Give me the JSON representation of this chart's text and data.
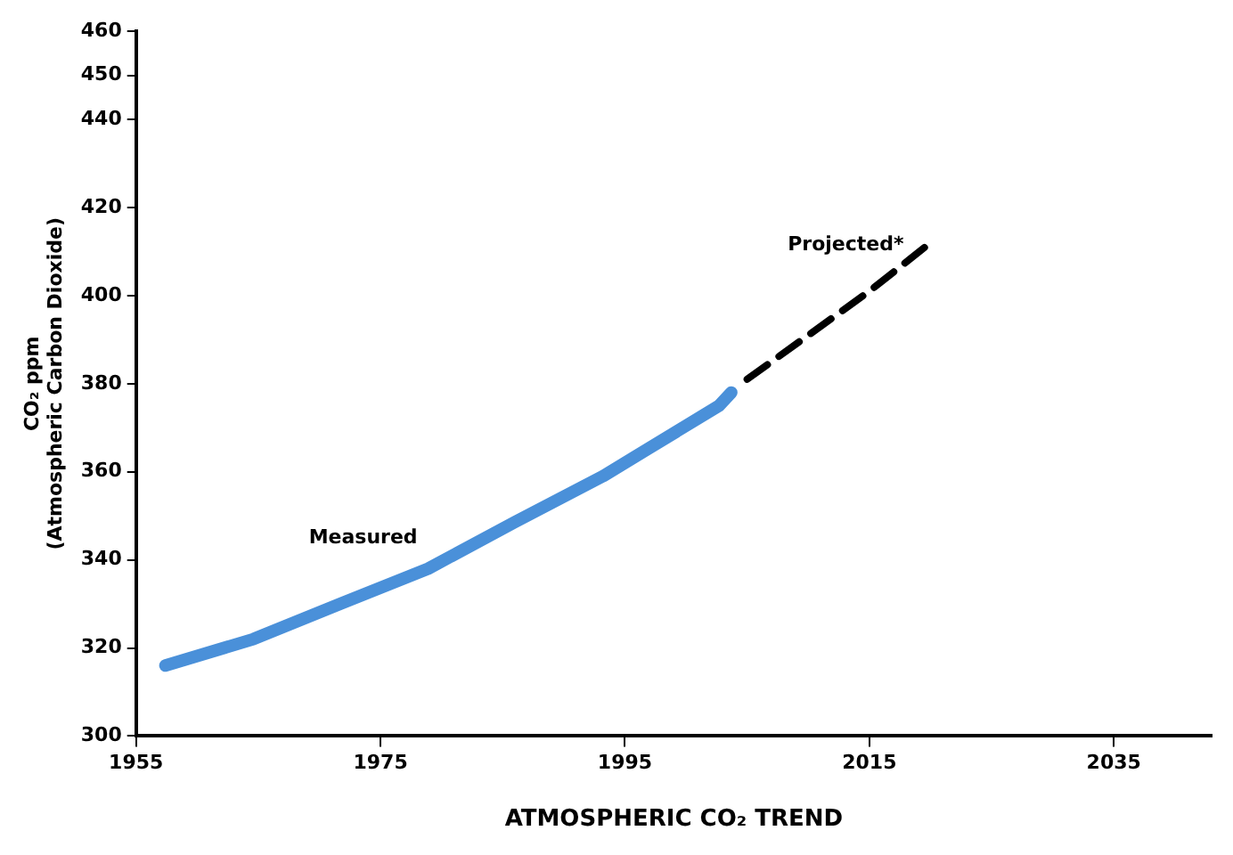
{
  "chart_data": {
    "type": "line",
    "xlabel": "ATMOSPHERIC CO₂ TREND",
    "ylabel": "CO₂ ppm (Atmospheric Carbon Dioxide)",
    "xlim": [
      1955,
      2043
    ],
    "xticks": [
      1955,
      1975,
      1995,
      2015,
      2035
    ],
    "ylim": [
      300,
      460
    ],
    "yticks": [
      300,
      320,
      340,
      360,
      380,
      400,
      420,
      440,
      450,
      460
    ],
    "grid": false,
    "legend": false,
    "marker": "none",
    "series": [
      {
        "name": "Measured",
        "color": "#4a90d9",
        "line_style": "solid",
        "x": [
          1957.4,
          1964.6,
          1971.7,
          1978.9,
          1986,
          1993.2,
          2002.7,
          2003.7
        ],
        "values": [
          316,
          322,
          330,
          338,
          348.6,
          359,
          375,
          378
        ]
      },
      {
        "name": "Projected*",
        "color": "#000000",
        "line_style": "dashed",
        "x": [
          2005,
          2010,
          2015,
          2020
        ],
        "values": [
          381,
          391,
          401,
          412
        ]
      }
    ]
  }
}
